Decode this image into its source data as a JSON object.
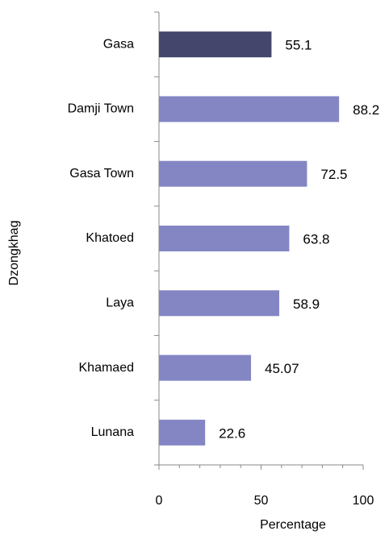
{
  "chart_data": {
    "type": "bar",
    "orientation": "horizontal",
    "x_label": "Percentage",
    "y_label": "Dzongkhag",
    "categories": [
      "Gasa",
      "Damji Town",
      "Gasa Town",
      "Khatoed",
      "Laya",
      "Khamaed",
      "Lunana"
    ],
    "values": [
      55.1,
      88.2,
      72.5,
      63.8,
      58.9,
      45.07,
      22.6
    ],
    "colors": [
      "#44476b",
      "#8486c4",
      "#8486c4",
      "#8486c4",
      "#8486c4",
      "#8486c4",
      "#8486c4"
    ],
    "xlim": [
      0,
      100
    ],
    "xticks": [
      0,
      50,
      100
    ],
    "grid": false
  }
}
